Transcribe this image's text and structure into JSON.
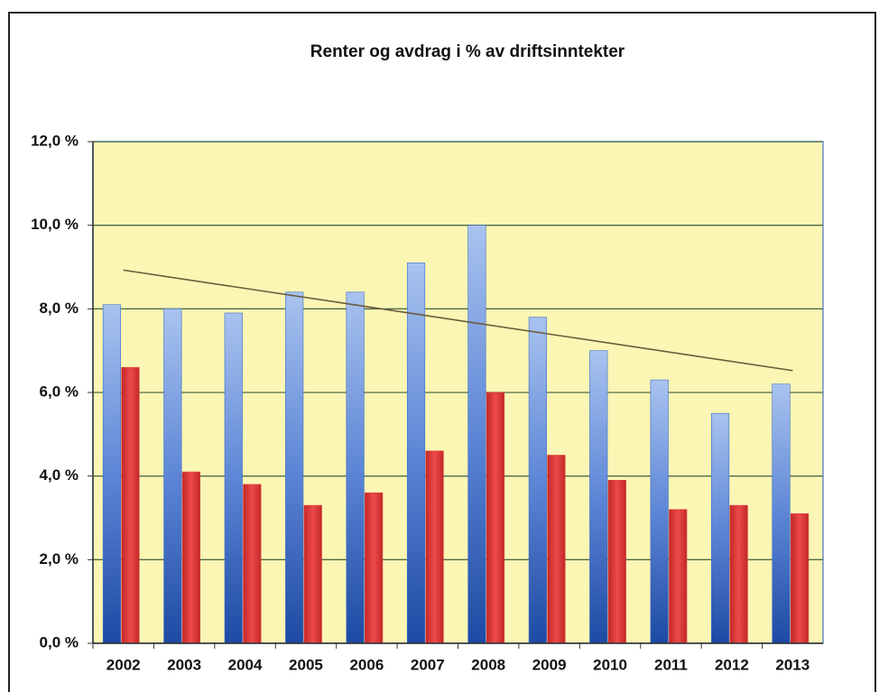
{
  "chart_data": {
    "type": "bar",
    "title": "Renter og avdrag i % av driftsinntekter",
    "categories": [
      "2002",
      "2003",
      "2004",
      "2005",
      "2006",
      "2007",
      "2008",
      "2009",
      "2010",
      "2011",
      "2012",
      "2013"
    ],
    "series": [
      {
        "color": "#3a6cc8",
        "values": [
          8.1,
          8.0,
          7.9,
          8.4,
          8.4,
          9.1,
          10.0,
          7.8,
          7.0,
          6.3,
          5.5,
          6.2
        ]
      },
      {
        "color": "#e03a3a",
        "values": [
          6.6,
          4.1,
          3.8,
          3.3,
          3.6,
          4.6,
          6.0,
          4.5,
          3.9,
          3.2,
          3.3,
          3.1
        ]
      }
    ],
    "trendline": true,
    "ylim": [
      0,
      12
    ],
    "yticks": [
      {
        "value": 0,
        "label": "0,0 %"
      },
      {
        "value": 2,
        "label": "2,0 %"
      },
      {
        "value": 4,
        "label": "4,0 %"
      },
      {
        "value": 6,
        "label": "6,0 %"
      },
      {
        "value": 8,
        "label": "8,0 %"
      },
      {
        "value": 10,
        "label": "10,0 %"
      },
      {
        "value": 12,
        "label": "12,0 %"
      }
    ],
    "grid": true
  }
}
